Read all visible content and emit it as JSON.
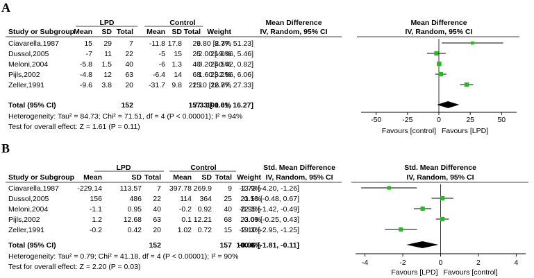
{
  "chart_data": [
    {
      "type": "forest",
      "panel_label": "A",
      "group1_label": "LPD",
      "group2_label": "Control",
      "effect_label": "Mean Difference",
      "effect_sublabel": "IV, Random, 95% CI",
      "col_headers": {
        "study": "Study or Subgroup",
        "mean1": "Mean",
        "sd1": "SD",
        "total1": "Total",
        "mean2": "Mean",
        "sd2": "SD",
        "total2": "Total",
        "weight": "Weight"
      },
      "studies": [
        {
          "name": "Ciavarella,1987",
          "mean1": "15",
          "sd1": "29",
          "n1": "7",
          "mean2": "-11.8",
          "sd2": "17.8",
          "n2": "9",
          "weight": "8.7%",
          "ci_text": "26.80 [2.37, 51.23]",
          "est": 26.8,
          "lo": 2.37,
          "hi": 51.23
        },
        {
          "name": "Dussol,2005",
          "mean1": "-7",
          "sd1": "11",
          "n1": "22",
          "mean2": "-5",
          "sd2": "15",
          "n2": "25",
          "weight": "21.0%",
          "ci_text": "-2.00 [-9.46, 5.46]",
          "est": -2.0,
          "lo": -9.46,
          "hi": 5.46
        },
        {
          "name": "Meloni,2004",
          "mean1": "-5.8",
          "sd1": "1.5",
          "n1": "40",
          "mean2": "-6",
          "sd2": "1.3",
          "n2": "40",
          "weight": "24.5%",
          "ci_text": "0.20 [-0.42, 0.82]",
          "est": 0.2,
          "lo": -0.42,
          "hi": 0.82
        },
        {
          "name": "Pijls,2002",
          "mean1": "-4.8",
          "sd1": "12",
          "n1": "63",
          "mean2": "-6.4",
          "sd2": "14",
          "n2": "68",
          "weight": "23.2%",
          "ci_text": "1.60 [-2.86, 6.06]",
          "est": 1.6,
          "lo": -2.86,
          "hi": 6.06
        },
        {
          "name": "Zeller,1991",
          "mean1": "-9.6",
          "sd1": "3.8",
          "n1": "20",
          "mean2": "-31.7",
          "sd2": "9.8",
          "n2": "15",
          "weight": "22.7%",
          "ci_text": "22.10 [16.87, 27.33]",
          "est": 22.1,
          "lo": 16.87,
          "hi": 27.33
        }
      ],
      "total": {
        "label": "Total (95% CI)",
        "n1": "152",
        "n2": "157",
        "weight": "100.0%",
        "ci_text": "7.33 [-1.61, 16.27]",
        "est": 7.33,
        "lo": -1.61,
        "hi": 16.27
      },
      "heterogeneity": "Heterogeneity: Tau² = 84.73; Chi² = 71.51, df = 4 (P < 0.00001); I² = 94%",
      "overall_effect": "Test for overall effect: Z = 1.61 (P = 0.11)",
      "axis": {
        "min": -62,
        "max": 62,
        "ticks": [
          -50,
          -25,
          0,
          25,
          50
        ],
        "tick_labels": [
          "-50",
          "-25",
          "0",
          "25",
          "50"
        ]
      },
      "favours_left": "Favours [control]",
      "favours_right": "Favours [LPD]"
    },
    {
      "type": "forest",
      "panel_label": "B",
      "group1_label": "LPD",
      "group2_label": "Control",
      "effect_label": "Std. Mean Difference",
      "effect_sublabel": "IV, Random, 95% CI",
      "col_headers": {
        "study": "Study or Subgroup",
        "mean1": "Mean",
        "sd1": "SD",
        "total1": "Total",
        "mean2": "Mean",
        "sd2": "SD",
        "total2": "Total",
        "weight": "Weight"
      },
      "studies": [
        {
          "name": "Ciavarella,1987",
          "mean1": "-229.14",
          "sd1": "113.57",
          "n1": "7",
          "mean2": "397.78",
          "sd2": "269.9",
          "n2": "9",
          "weight": "13.9%",
          "ci_text": "-2.73 [-4.20, -1.26]",
          "est": -2.73,
          "lo": -4.2,
          "hi": -1.26
        },
        {
          "name": "Dussol,2005",
          "mean1": "156",
          "sd1": "486",
          "n1": "22",
          "mean2": "114",
          "sd2": "364",
          "n2": "25",
          "weight": "21.5%",
          "ci_text": "0.10 [-0.48, 0.67]",
          "est": 0.1,
          "lo": -0.48,
          "hi": 0.67
        },
        {
          "name": "Meloni,2004",
          "mean1": "-1.1",
          "sd1": "0.95",
          "n1": "40",
          "mean2": "-0.2",
          "sd2": "0.92",
          "n2": "40",
          "weight": "22.3%",
          "ci_text": "-0.95 [-1.42, -0.49]",
          "est": -0.95,
          "lo": -1.42,
          "hi": -0.49
        },
        {
          "name": "Pijls,2002",
          "mean1": "1.2",
          "sd1": "12.68",
          "n1": "63",
          "mean2": "0.1",
          "sd2": "12.21",
          "n2": "68",
          "weight": "23.0%",
          "ci_text": "0.09 [-0.25, 0.43]",
          "est": 0.09,
          "lo": -0.25,
          "hi": 0.43
        },
        {
          "name": "Zeller,1991",
          "mean1": "-0.2",
          "sd1": "0.42",
          "n1": "20",
          "mean2": "1.02",
          "sd2": "0.72",
          "n2": "15",
          "weight": "19.3%",
          "ci_text": "-2.10 [-2.95, -1.25]",
          "est": -2.1,
          "lo": -2.95,
          "hi": -1.25
        }
      ],
      "total": {
        "label": "Total (95% CI)",
        "n1": "152",
        "n2": "157",
        "weight": "100.0%",
        "ci_text": "-0.96 [-1.81, -0.11]",
        "est": -0.96,
        "lo": -1.81,
        "hi": -0.11
      },
      "heterogeneity": "Heterogeneity: Tau² = 0.79; Chi² = 41.18, df = 4 (P < 0.00001); I² = 90%",
      "overall_effect": "Test for overall effect: Z = 2.20 (P = 0.03)",
      "axis": {
        "min": -4.5,
        "max": 4.5,
        "ticks": [
          -4,
          -2,
          0,
          2,
          4
        ],
        "tick_labels": [
          "-4",
          "-2",
          "0",
          "2",
          "4"
        ]
      },
      "favours_left": "Favours [LPD]",
      "favours_right": "Favours [control]"
    }
  ],
  "colors": {
    "marker": "#22bb22",
    "diamond": "#000000",
    "lines": "#000000"
  }
}
